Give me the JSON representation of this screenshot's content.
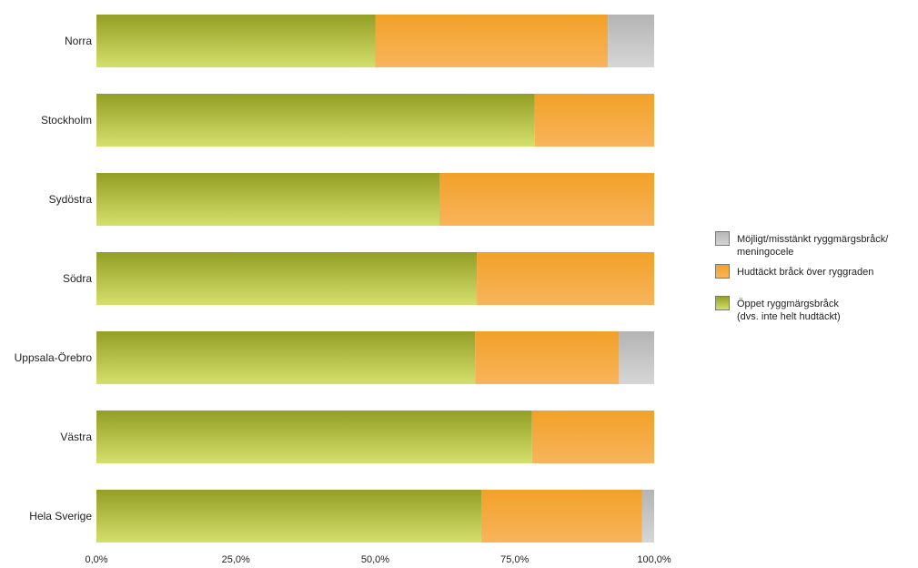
{
  "chart_data": {
    "type": "bar",
    "orientation": "horizontal",
    "stacked": true,
    "categories": [
      "Norra",
      "Stockholm",
      "Sydöstra",
      "Södra",
      "Uppsala-Örebro",
      "Västra",
      "Hela Sverige"
    ],
    "series": [
      {
        "name": "Öppet ryggmärgsbråck (dvs. inte helt hudtäckt)",
        "legend_lines": [
          "Öppet ryggmärgsbråck",
          "(dvs. inte helt hudtäckt)"
        ],
        "color": "#a8b640",
        "values": [
          50.0,
          78.6,
          61.5,
          68.2,
          67.9,
          78.1,
          69.0
        ]
      },
      {
        "name": "Hudtäckt bråck över ryggraden",
        "legend_lines": [
          "Hudtäckt bråck över ryggraden"
        ],
        "color": "#f5a83a",
        "values": [
          41.7,
          21.4,
          38.5,
          31.8,
          25.8,
          21.9,
          28.8
        ]
      },
      {
        "name": "Möjligt/misstänkt ryggmärgsbråck/ meningocele",
        "legend_lines": [
          "Möjligt/misstänkt ryggmärgsbråck/",
          "meningocele"
        ],
        "color": "#c4c4c4",
        "values": [
          8.3,
          0.0,
          0.0,
          0.0,
          6.3,
          0.0,
          2.2
        ]
      }
    ],
    "xlim": [
      0,
      100
    ],
    "xticks": [
      0,
      25,
      50,
      75,
      100
    ],
    "xtick_labels": [
      "0,0%",
      "25,0%",
      "50,0%",
      "75,0%",
      "100,0%"
    ],
    "legend_order": [
      2,
      1,
      0
    ],
    "legend_position": "right",
    "grid": false
  }
}
